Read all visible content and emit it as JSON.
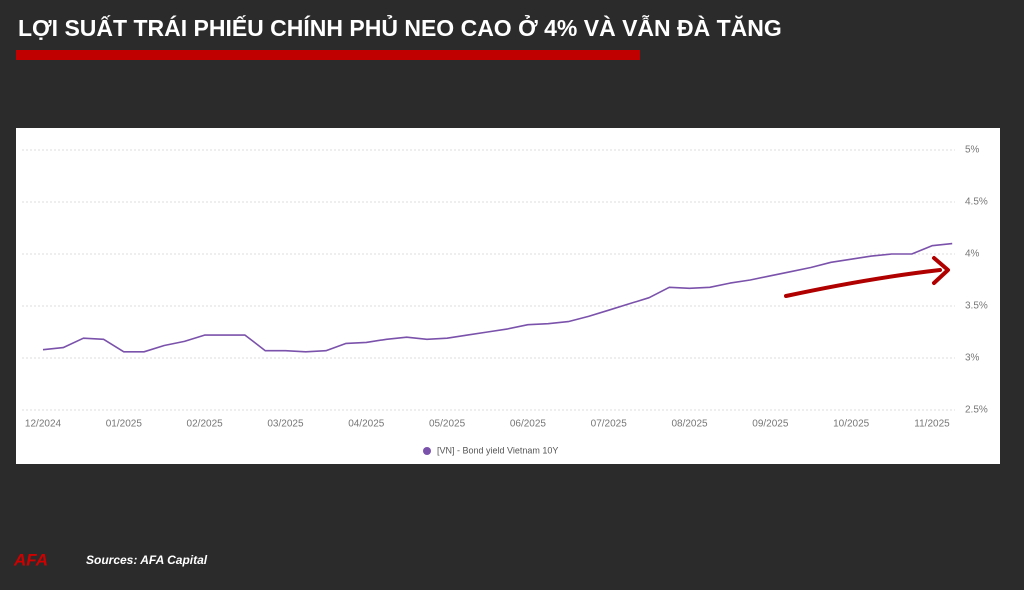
{
  "title": "LỢI SUẤT TRÁI PHIẾU CHÍNH PHỦ NEO CAO Ở 4% VÀ VẪN ĐÀ TĂNG",
  "source": "Sources: AFA Capital",
  "logo": "AFA",
  "chart_data": {
    "type": "line",
    "categories": [
      "12/2024",
      null,
      null,
      null,
      "01/2025",
      null,
      null,
      null,
      "02/2025",
      null,
      null,
      null,
      "03/2025",
      null,
      null,
      null,
      "04/2025",
      null,
      null,
      null,
      "05/2025",
      null,
      null,
      null,
      "06/2025",
      null,
      null,
      null,
      "07/2025",
      null,
      null,
      null,
      "08/2025",
      null,
      null,
      null,
      "09/2025",
      null,
      null,
      null,
      "10/2025",
      null,
      null,
      null,
      "11/2025",
      null
    ],
    "series": [
      {
        "name": "[VN] - Bond yield Vietnam 10Y",
        "color": "#7b52ab",
        "values": [
          3.08,
          3.1,
          3.19,
          3.18,
          3.06,
          3.06,
          3.12,
          3.16,
          3.22,
          3.22,
          3.22,
          3.07,
          3.07,
          3.06,
          3.07,
          3.14,
          3.15,
          3.18,
          3.2,
          3.18,
          3.19,
          3.22,
          3.25,
          3.28,
          3.32,
          3.33,
          3.35,
          3.4,
          3.46,
          3.52,
          3.58,
          3.68,
          3.67,
          3.68,
          3.72,
          3.75,
          3.79,
          3.83,
          3.87,
          3.92,
          3.95,
          3.98,
          4.0,
          4.0,
          4.08,
          4.1
        ]
      }
    ],
    "ylim": [
      2.5,
      5
    ],
    "yticks": [
      {
        "value": 2.5,
        "label": "2.5%"
      },
      {
        "value": 3,
        "label": "3%"
      },
      {
        "value": 3.5,
        "label": "3.5%"
      },
      {
        "value": 4,
        "label": "4%"
      },
      {
        "value": 4.5,
        "label": "4.5%"
      },
      {
        "value": 5,
        "label": "5%"
      }
    ],
    "grid": true
  }
}
